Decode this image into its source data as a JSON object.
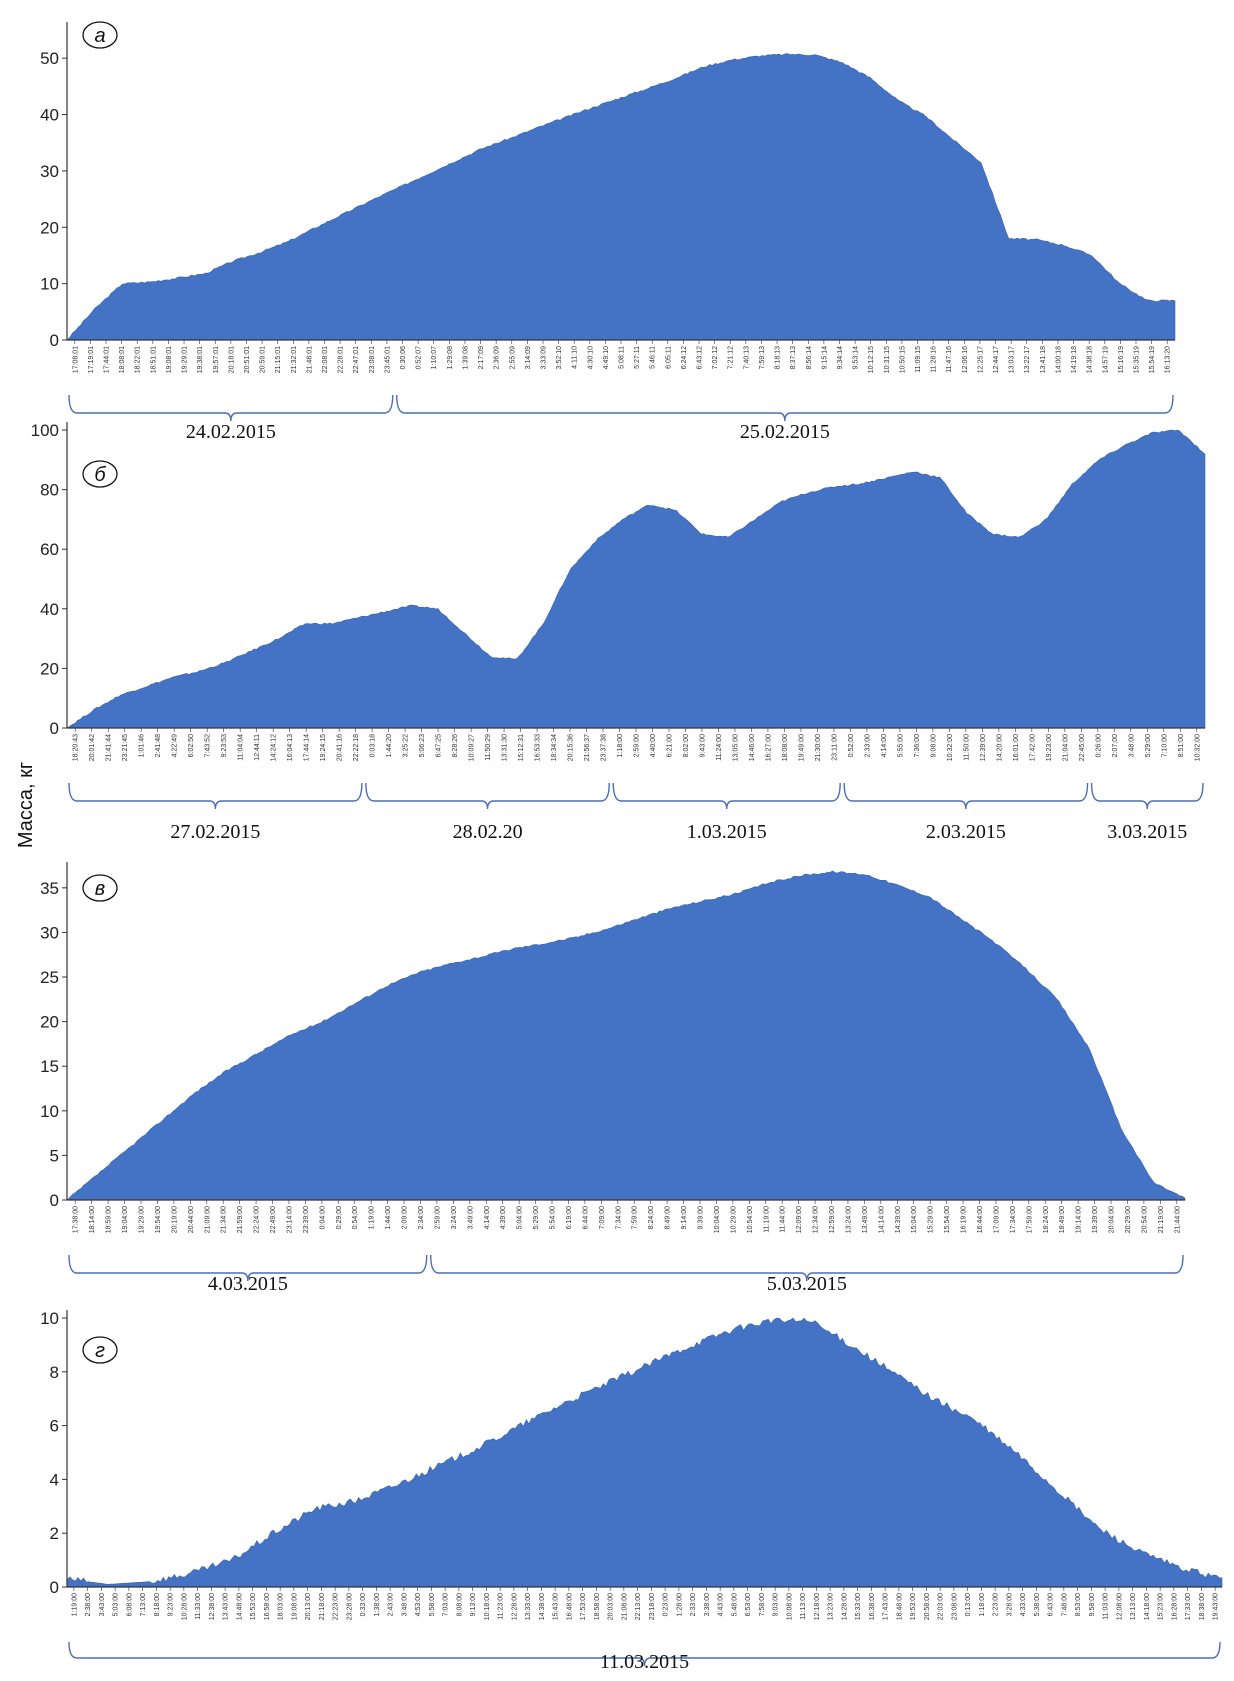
{
  "figure": {
    "ylabel": "Масса, кг",
    "colors": {
      "fill": "#4472c4",
      "stroke": "#3a64b0",
      "axis": "#333333",
      "bracket": "#4a6fb5"
    }
  },
  "chart_data": [
    {
      "type": "area",
      "panel": "а",
      "ylim": [
        0,
        55
      ],
      "yticks": [
        0,
        10,
        20,
        30,
        40,
        50
      ],
      "x_tick_labels": [
        "17:08:01",
        "17:19:01",
        "17:44:01",
        "18:08:01",
        "18:22:01",
        "18:51:01",
        "19:08:01",
        "19:29:01",
        "19:38:01",
        "19:57:01",
        "20:18:01",
        "20:51:01",
        "20:59:01",
        "21:15:01",
        "21:32:01",
        "21:48:01",
        "22:08:01",
        "22:28:01",
        "22:47:01",
        "23:08:01",
        "23:45:01",
        "0:30:06",
        "0:52:07",
        "1:10:07",
        "1:29:08",
        "1:39:08",
        "2:17:09",
        "2:36:09",
        "2:55:09",
        "3:14:09",
        "3:33:09",
        "3:52:10",
        "4:11:10",
        "4:30:10",
        "4:49:10",
        "5:08:11",
        "5:27:11",
        "5:46:11",
        "6:05:11",
        "6:24:12",
        "6:43:12",
        "7:02:12",
        "7:21:12",
        "7:40:13",
        "7:59:13",
        "8:18:13",
        "8:37:13",
        "8:56:14",
        "9:15:14",
        "9:34:14",
        "9:53:14",
        "10:12:15",
        "10:31:15",
        "10:50:15",
        "11:09:15",
        "11:28:16",
        "11:47:16",
        "12:06:16",
        "12:25:17",
        "12:44:17",
        "13:03:17",
        "13:22:17",
        "13:41:18",
        "14:00:18",
        "14:19:18",
        "14:38:18",
        "14:57:19",
        "15:16:19",
        "15:35:19",
        "15:54:19",
        "16:13:20"
      ],
      "date_groups": [
        {
          "label": "24.02.2015",
          "from": 0,
          "to": 20
        },
        {
          "label": "25.02.2015",
          "from": 21,
          "to": 70
        }
      ],
      "y": [
        0,
        5.5,
        10,
        10.3,
        11,
        11.8,
        14,
        15.6,
        17.5,
        20,
        22.4,
        24.8,
        27.1,
        29.4,
        31.7,
        34,
        35.8,
        37.7,
        39.5,
        41.3,
        43,
        44.7,
        46.5,
        48.5,
        49.7,
        50.4,
        50.7,
        50.6,
        49.2,
        46.5,
        42.5,
        39.7,
        35.5,
        31.5,
        18,
        17.8,
        16.8,
        15,
        10,
        7,
        7
      ],
      "samples": 400
    },
    {
      "type": "area",
      "panel": "б",
      "ylim": [
        0,
        100
      ],
      "yticks": [
        0,
        20,
        40,
        60,
        80,
        100
      ],
      "x_tick_labels": [
        "18:20:43",
        "20:01:42",
        "21:41:44",
        "23:21:45",
        "1:01:46",
        "2:41:48",
        "4:22:49",
        "6:02:50",
        "7:43:52",
        "9:23:53",
        "11:04:04",
        "12:44:11",
        "14:24:12",
        "16:04:13",
        "17:44:14",
        "19:24:15",
        "20:41:16",
        "22:22:18",
        "0:03:18",
        "1:44:20",
        "3:25:22",
        "5:06:23",
        "6:47:25",
        "8:28:26",
        "10:09:27",
        "11:50:29",
        "13:31:30",
        "15:12:31",
        "16:53:33",
        "18:34:34",
        "20:15:36",
        "21:56:37",
        "23:37:38",
        "1:18:00",
        "2:59:00",
        "4:40:00",
        "6:21:00",
        "8:02:00",
        "9:43:00",
        "11:24:00",
        "13:05:00",
        "14:46:00",
        "16:27:00",
        "18:08:00",
        "19:49:00",
        "21:30:00",
        "23:11:00",
        "0:52:00",
        "2:33:00",
        "4:14:00",
        "5:55:00",
        "7:36:00",
        "9:08:00",
        "10:32:00",
        "11:50:00",
        "12:39:00",
        "14:20:00",
        "16:01:00",
        "17:42:00",
        "19:23:00",
        "21:04:00",
        "22:45:00",
        "0:26:00",
        "2:07:00",
        "3:48:00",
        "5:29:00",
        "7:10:00",
        "8:51:00",
        "10:32:00"
      ],
      "date_groups": [
        {
          "label": "27.02.2015",
          "from": 0,
          "to": 17
        },
        {
          "label": "28.02.20",
          "from": 18,
          "to": 32
        },
        {
          "label": "1.03.2015",
          "from": 33,
          "to": 46
        },
        {
          "label": "2.03.2015",
          "from": 47,
          "to": 61
        },
        {
          "label": "3.03.2015",
          "from": 62,
          "to": 68
        }
      ],
      "y": [
        0,
        6,
        11,
        14,
        17,
        19,
        22,
        26,
        30,
        35,
        35,
        37,
        39,
        41,
        40,
        32,
        24,
        23,
        35,
        53,
        63,
        70,
        75,
        73,
        65,
        64,
        70,
        76,
        79,
        81,
        82,
        84,
        86,
        84,
        72,
        65,
        64,
        70,
        82,
        90,
        95,
        99,
        100,
        92
      ],
      "samples": 420
    },
    {
      "type": "area",
      "panel": "в",
      "ylim": [
        0,
        37
      ],
      "yticks": [
        0,
        5,
        10,
        15,
        20,
        25,
        30,
        35
      ],
      "x_tick_labels": [
        "17:38:00",
        "18:14:00",
        "18:59:00",
        "19:04:00",
        "19:29:00",
        "19:54:00",
        "20:19:00",
        "20:44:00",
        "21:09:00",
        "21:34:00",
        "21:59:00",
        "22:24:00",
        "22:49:00",
        "23:14:00",
        "23:39:00",
        "0:04:00",
        "0:29:00",
        "0:54:00",
        "1:19:00",
        "1:44:00",
        "2:09:00",
        "2:34:00",
        "2:59:00",
        "3:24:00",
        "3:49:00",
        "4:14:00",
        "4:39:00",
        "5:04:00",
        "5:29:00",
        "5:54:00",
        "6:19:00",
        "6:44:00",
        "7:09:00",
        "7:34:00",
        "7:59:00",
        "8:24:00",
        "8:49:00",
        "9:14:00",
        "9:39:00",
        "10:04:00",
        "10:29:00",
        "10:54:00",
        "11:19:00",
        "11:44:00",
        "12:09:00",
        "12:34:00",
        "12:59:00",
        "13:24:00",
        "13:49:00",
        "14:14:00",
        "14:39:00",
        "15:04:00",
        "15:29:00",
        "15:54:00",
        "16:19:00",
        "16:44:00",
        "17:09:00",
        "17:34:00",
        "17:59:00",
        "18:24:00",
        "18:49:00",
        "19:14:00",
        "19:39:00",
        "20:04:00",
        "20:29:00",
        "20:54:00",
        "21:19:00",
        "21:44:00"
      ],
      "date_groups": [
        {
          "label": "4.03.2015",
          "from": 0,
          "to": 21
        },
        {
          "label": "5.03.2015",
          "from": 22,
          "to": 67
        }
      ],
      "y": [
        0,
        3,
        6,
        9,
        12,
        14.5,
        16.5,
        18.5,
        20,
        22,
        24,
        25.5,
        26.5,
        27.3,
        28.2,
        28.8,
        29.5,
        30.5,
        31.7,
        32.8,
        33.6,
        34.4,
        35.6,
        36.4,
        36.8,
        36.5,
        35.3,
        34,
        31.5,
        29,
        26,
        22.5,
        17,
        8,
        2,
        0.2
      ],
      "samples": 400
    },
    {
      "type": "area",
      "panel": "г",
      "ylim": [
        0,
        10
      ],
      "yticks": [
        0,
        2,
        4,
        6,
        8,
        10
      ],
      "x_tick_labels": [
        "1:19:00",
        "2:38:00",
        "3:43:00",
        "5:03:00",
        "6:08:00",
        "7:13:00",
        "8:18:00",
        "9:23:00",
        "10:28:00",
        "11:33:00",
        "12:38:00",
        "13:43:00",
        "14:48:00",
        "15:53:00",
        "16:58:00",
        "18:03:00",
        "19:08:00",
        "20:13:00",
        "21:18:00",
        "22:23:00",
        "23:28:00",
        "0:33:00",
        "1:38:00",
        "2:43:00",
        "3:48:00",
        "4:53:00",
        "5:58:00",
        "7:03:00",
        "8:08:00",
        "9:13:00",
        "10:18:00",
        "11:23:00",
        "12:28:00",
        "13:33:00",
        "14:38:00",
        "15:43:00",
        "16:48:00",
        "17:53:00",
        "18:58:00",
        "20:03:00",
        "21:08:00",
        "22:13:00",
        "23:18:00",
        "0:23:00",
        "1:28:00",
        "2:33:00",
        "3:38:00",
        "4:43:00",
        "5:48:00",
        "6:53:00",
        "7:58:00",
        "9:03:00",
        "10:08:00",
        "11:13:00",
        "12:18:00",
        "13:23:00",
        "14:28:00",
        "15:33:00",
        "16:38:00",
        "17:43:00",
        "18:48:00",
        "19:53:00",
        "20:58:00",
        "22:03:00",
        "23:08:00",
        "0:13:00",
        "1:18:00",
        "2:23:00",
        "3:28:00",
        "4:33:00",
        "5:38:00",
        "6:43:00",
        "7:48:00",
        "8:53:00",
        "9:58:00",
        "11:03:00",
        "12:08:00",
        "13:13:00",
        "14:18:00",
        "15:23:00",
        "16:28:00",
        "17:33:00",
        "18:38:00",
        "19:43:00"
      ],
      "date_groups": [
        {
          "label": "11.03.2015",
          "from": 0,
          "to": 83
        }
      ],
      "y": [
        0.3,
        0.1,
        0.2,
        0.5,
        1,
        2,
        2.9,
        3.2,
        3.8,
        4.5,
        5.2,
        6,
        6.8,
        7.5,
        8.2,
        8.9,
        9.5,
        9.9,
        9.9,
        9,
        8,
        7,
        6.2,
        5,
        3.6,
        2.2,
        1.3,
        0.7,
        0.3
      ],
      "samples": 420
    }
  ]
}
